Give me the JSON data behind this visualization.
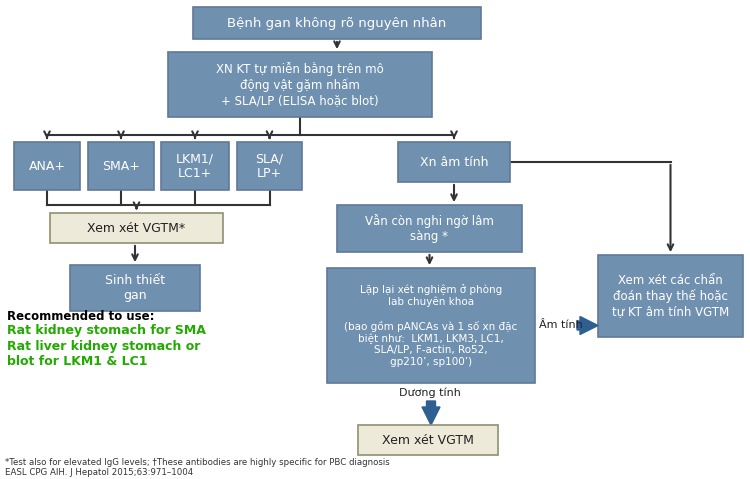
{
  "bg_color": "#ffffff",
  "box_blue": "#7090b0",
  "box_light": "#eeeada",
  "box_outline_blue": "#607898",
  "box_outline_light": "#909070",
  "text_white": "#ffffff",
  "text_dark": "#222222",
  "text_green": "#22aa00",
  "arrow_dark": "#333333",
  "arrow_fill": "#2e5f90",
  "title": "Bệnh gan không rõ nguyên nhân",
  "box2": "XN KT tự miễn bằng trên mô\nđộng vật gặm nhấm\n+ SLA/LP (ELISA hoặc blot)",
  "box_ana": "ANA+",
  "box_sma": "SMA+",
  "box_lkm": "LKM1/\nLC1+",
  "box_sla": "SLA/\nLP+",
  "box_xn_am": "Xn âm tính",
  "box_vgtm1": "Xem xét VGTM*",
  "box_sinh": "Sinh thiết\ngan",
  "box_van_con": "Vẫn còn nghi ngờ lâm\nsàng *",
  "box_lap_lai": "Lặp lại xét nghiệm ở phòng\nlab chuyên khoa\n\n(bao gồm pANCAs và 1 số xn đặc\nbiệt như:  LKM1, LKM3, LC1,\nSLA/LP, F-actin, Ro52,\ngp210’, sp100’)",
  "box_am_tinh_label": "Âm tính",
  "box_xem_xet_chan": "Xem xét các chẩn\nđoán thay thế hoặc\ntự KT âm tính VGTM",
  "box_duong_tinh_label": "Dương tính",
  "box_vgtm2": "Xem xét VGTM",
  "recommended_bold": "Recommended to use:",
  "recommended_green1": "Rat kidney stomach for SMA",
  "recommended_green2": "Rat liver kidney stomach or\nblot for LKM1 & LC1",
  "footnote1": "*Test also for elevated IgG levels; †These antibodies are highly specific for PBC diagnosis",
  "footnote2": "EASL CPG AIH. J Hepatol 2015;63:971–1004"
}
